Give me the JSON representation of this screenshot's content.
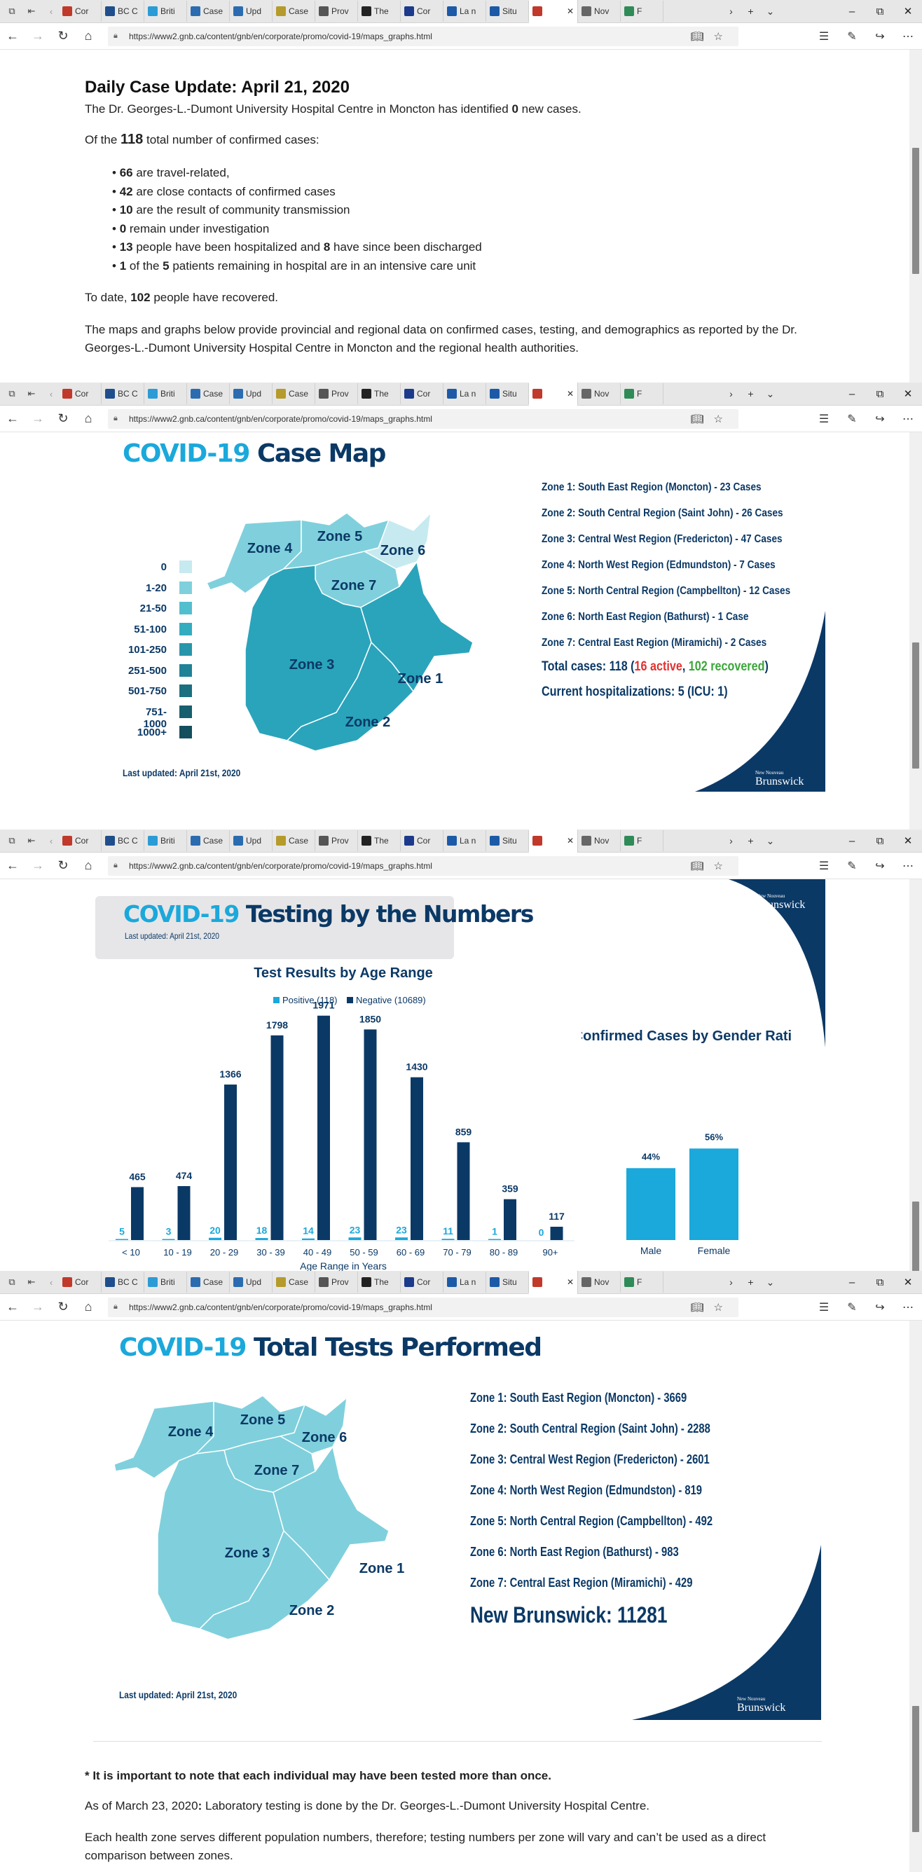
{
  "browser": {
    "url": "https://www2.gnb.ca/content/gnb/en/corporate/promo/covid-19/maps_graphs.html",
    "tabs": [
      "Cor",
      "BC C",
      "Briti",
      "Case",
      "Upd",
      "Case",
      "Prov",
      "The",
      "Cor",
      "La n",
      "Situ",
      "",
      "Nov",
      "F"
    ],
    "tab_colors": [
      "#c0392b",
      "#1f4e8c",
      "#2b9bd6",
      "#2b6cb0",
      "#2b6cb0",
      "#b59b2b",
      "#555",
      "#222",
      "#1c3a8c",
      "#1c5aa8",
      "#1c5aa8",
      "#c0392b",
      "#666",
      "#2e8b57"
    ],
    "icons": {
      "back": "back-arrow-icon",
      "forward": "forward-arrow-icon",
      "refresh": "refresh-icon",
      "home": "home-icon",
      "lock": "lock-icon",
      "reading": "reading-view-icon",
      "star": "favorite-star-icon",
      "favorites": "favorites-list-icon",
      "notes": "pen-icon",
      "share": "share-icon",
      "more": "more-icon"
    }
  },
  "update": {
    "title": "Daily Case Update: April 21, 2020",
    "intro_pre": "The Dr. Georges-L.-Dumont University Hospital Centre in Moncton has identified ",
    "intro_num": "0",
    "intro_post": " new cases.",
    "of_pre": "Of the ",
    "of_num": "118",
    "of_post": " total number of confirmed cases:",
    "bullets": [
      {
        "num": "66",
        "text": " are travel-related,"
      },
      {
        "num": "42",
        "text": " are close contacts of confirmed cases"
      },
      {
        "num": "10",
        "text": " are the result of community transmission"
      },
      {
        "num": "0",
        "text": " remain under investigation"
      },
      {
        "num": "13",
        "text": " people have been hospitalized and ",
        "num2": "8",
        "text2": " have since been discharged"
      },
      {
        "num": "1",
        "text": " of the ",
        "num2": "5",
        "text2": " patients remaining in hospital are in an intensive care unit"
      }
    ],
    "recovered_pre": "To date, ",
    "recovered_num": "102",
    "recovered_post": " people have recovered.",
    "maps_note": "The maps and graphs below provide provincial and regional data on confirmed cases, testing, and demographics as reported by the Dr. Georges-L.-Dumont University Hospital Centre in Moncton and the regional health authorities."
  },
  "case_map": {
    "title_a": "COVID-19",
    "title_b": " Case Map",
    "legend": [
      "0",
      "1-20",
      "21-50",
      "51-100",
      "101-250",
      "251-500",
      "501-750",
      "751-1000",
      "1000+"
    ],
    "legend_colors": [
      "#c6eaf0",
      "#7fd0dc",
      "#52bfcf",
      "#33acc0",
      "#2896aa",
      "#1f8296",
      "#1a6f80",
      "#175f6e",
      "#134f5c"
    ],
    "zones": [
      "Zone 1",
      "Zone 2",
      "Zone 3",
      "Zone 4",
      "Zone 5",
      "Zone 6",
      "Zone 7"
    ],
    "zone_lines": [
      "Zone 1: South East Region (Moncton) - 23 Cases",
      "Zone 2: South Central Region (Saint John) - 26 Cases",
      "Zone 3: Central West Region (Fredericton) - 47 Cases",
      "Zone 4: North West Region (Edmundston) - 7 Cases",
      "Zone 5: North Central Region (Campbellton) - 12 Cases",
      "Zone 6: North East Region (Bathurst) - 1 Case",
      "Zone 7: Central East Region (Miramichi) - 2 Cases"
    ],
    "total_pre": "Total cases: 118 (",
    "active": "16 active",
    "total_mid": ", ",
    "recovered": "102 recovered",
    "total_post": ")",
    "hosp": "Current hospitalizations: 5 (ICU: 1)",
    "updated": "Last updated: April 21st, 2020",
    "logo_small": "New Nouveau",
    "logo": "Brunswick",
    "colors": {
      "active": "#e03131",
      "recovered": "#3aa63a",
      "navy": "#0b3966",
      "cyan": "#1ba8db"
    }
  },
  "testing": {
    "title_a": "COVID-19",
    "title_b": " Testing by the Numbers",
    "updated": "Last updated: April 21st, 2020",
    "chart_title": "Test Results by Age Range",
    "legend_pos": "Positive (118)",
    "legend_neg": "Negative (10689)",
    "gender_title": "Confirmed Cases by Gender Ratio",
    "xlabel": "Age Range in Years",
    "logo_small": "New Nouveau",
    "logo": "Brunswick"
  },
  "chart_data": [
    {
      "type": "bar",
      "title": "Test Results by Age Range",
      "xlabel": "Age Range in Years",
      "categories": [
        "< 10",
        "10 - 19",
        "20 - 29",
        "30 - 39",
        "40 - 49",
        "50 - 59",
        "60 - 69",
        "70 - 79",
        "80 - 89",
        "90+"
      ],
      "series": [
        {
          "name": "Positive (118)",
          "values": [
            5,
            3,
            20,
            18,
            14,
            23,
            23,
            11,
            1,
            0
          ],
          "color": "#1ba8db"
        },
        {
          "name": "Negative (10689)",
          "values": [
            465,
            474,
            1366,
            1798,
            1971,
            1850,
            1430,
            859,
            359,
            117
          ],
          "color": "#0b3966"
        }
      ],
      "ylim": [
        0,
        2000
      ]
    },
    {
      "type": "bar",
      "title": "Confirmed Cases by Gender Ratio",
      "categories": [
        "Male",
        "Female"
      ],
      "values": [
        44,
        56
      ],
      "value_labels": [
        "44%",
        "56%"
      ],
      "color": "#1ba8db",
      "ylim": [
        0,
        60
      ]
    }
  ],
  "tests_map": {
    "title_a": "COVID-19",
    "title_b": " Total Tests Performed",
    "zones": [
      "Zone 1",
      "Zone 2",
      "Zone 3",
      "Zone 4",
      "Zone 5",
      "Zone 6",
      "Zone 7"
    ],
    "zone_lines": [
      "Zone 1: South East Region (Moncton) - 3669",
      "Zone 2: South Central Region (Saint John) - 2288",
      "Zone 3: Central West Region (Fredericton) - 2601",
      "Zone 4: North West Region (Edmundston) - 819",
      "Zone 5: North Central Region (Campbellton) - 492",
      "Zone 6: North East Region (Bathurst) - 983",
      "Zone 7: Central East Region (Miramichi) - 429"
    ],
    "total": "New Brunswick: 11281",
    "updated": "Last updated: April 21st, 2020",
    "logo_small": "New Nouveau",
    "logo": "Brunswick"
  },
  "notes": {
    "note1": "* It is important to note that each individual may have been tested more than once.",
    "note2_date": "As of March 23, 2020",
    "note2_colon": ":",
    "note2_text": " Laboratory testing is done by the Dr. Georges-L.-Dumont University Hospital Centre.",
    "note3": "Each health zone serves different population numbers, therefore; testing numbers per zone will vary and can’t be used as a direct comparison between zones."
  }
}
